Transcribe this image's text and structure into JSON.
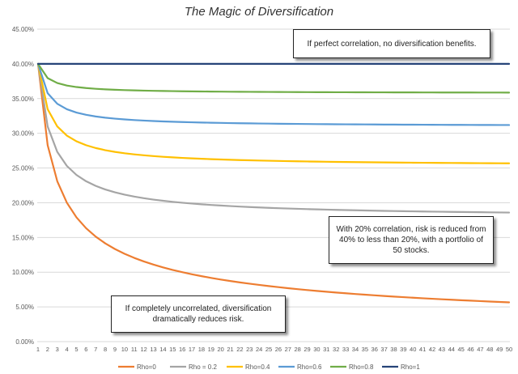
{
  "chart_data": {
    "type": "line",
    "title": "The Magic of Diversification",
    "xlabel": "",
    "ylabel": "",
    "ylim": [
      0,
      45
    ],
    "ytick_labels": [
      "0.00%",
      "5.00%",
      "10.00%",
      "15.00%",
      "20.00%",
      "25.00%",
      "30.00%",
      "35.00%",
      "40.00%",
      "45.00%"
    ],
    "x": [
      1,
      2,
      3,
      4,
      5,
      6,
      7,
      8,
      9,
      10,
      11,
      12,
      13,
      14,
      15,
      16,
      17,
      18,
      19,
      20,
      21,
      22,
      23,
      24,
      25,
      26,
      27,
      28,
      29,
      30,
      31,
      32,
      33,
      34,
      35,
      36,
      37,
      38,
      39,
      40,
      41,
      42,
      43,
      44,
      45,
      46,
      47,
      48,
      49,
      50
    ],
    "grid": true,
    "legend_position": "bottom",
    "series": [
      {
        "name": "Rho=0",
        "rho": 0,
        "color": "#ED7D31"
      },
      {
        "name": "Rho = 0.2",
        "rho": 0.2,
        "color": "#A5A5A5"
      },
      {
        "name": "Rho=0.4",
        "rho": 0.4,
        "color": "#FFC000"
      },
      {
        "name": "Rho=0.6",
        "rho": 0.6,
        "color": "#5B9BD5"
      },
      {
        "name": "Rho=0.8",
        "rho": 0.8,
        "color": "#70AD47"
      },
      {
        "name": "Rho=1",
        "rho": 1,
        "color": "#264478"
      }
    ],
    "sigma": 40,
    "annotations": [
      "If perfect correlation, no diversification benefits.",
      "With 20% correlation, risk is reduced from 40% to less than 20%, with a portfolio of 50 stocks.",
      "If completely uncorrelated, diversification dramatically reduces risk."
    ]
  }
}
